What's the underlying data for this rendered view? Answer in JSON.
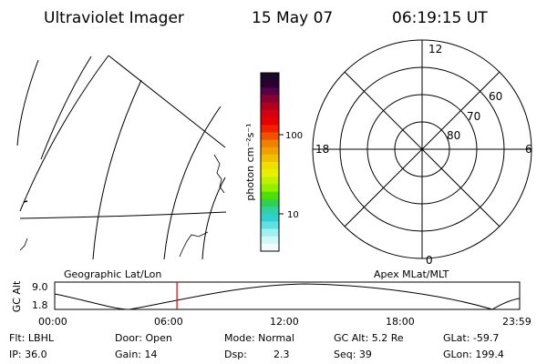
{
  "header": {
    "title": "Ultraviolet Imager",
    "date": "15 May 07",
    "time": "06:19:15 UT"
  },
  "colorbar": {
    "unit_label": "photon cm⁻²s⁻¹",
    "tick_labels": [
      "100",
      "10"
    ],
    "colors": [
      "#1a0a2a",
      "#2a0030",
      "#5a0044",
      "#8a0030",
      "#b00020",
      "#d40010",
      "#e80000",
      "#f02000",
      "#f05000",
      "#f08000",
      "#f0a000",
      "#f0c000",
      "#f0e000",
      "#e8f000",
      "#c0f000",
      "#90f000",
      "#50e000",
      "#30d050",
      "#30d0a0",
      "#30d0d0",
      "#60e0e0",
      "#a0f0f0",
      "#d0f8f8",
      "#f0fcfc"
    ]
  },
  "polar_plot": {
    "hour_labels": [
      "12",
      "18",
      "6",
      "0"
    ],
    "lat_labels": [
      "60",
      "70",
      "80"
    ]
  },
  "timeline": {
    "left_caption": "Geographic Lat/Lon",
    "right_caption": "Apex MLat/MLT",
    "axis_name": "GC Alt",
    "y_ticks": [
      "9.0",
      "1.8"
    ],
    "x_ticks": [
      "00:00",
      "06:00",
      "12:00",
      "18:00",
      "23:59"
    ],
    "current_time_fraction": 0.263
  },
  "status": {
    "flt": "Flt: LBHL",
    "ip": "IP: 36.0",
    "door": "Door: Open",
    "gain": "Gain: 14",
    "mode": "Mode: Normal",
    "dsp_label": "Dsp:",
    "dsp_value": "2.3",
    "gc_alt": "GC Alt: 5.2 Re",
    "seq": "Seq: 39",
    "glat": "GLat: -59.7",
    "glon": "GLon: 199.4"
  },
  "colors": {
    "marker": "#e00000",
    "line": "#000000"
  }
}
